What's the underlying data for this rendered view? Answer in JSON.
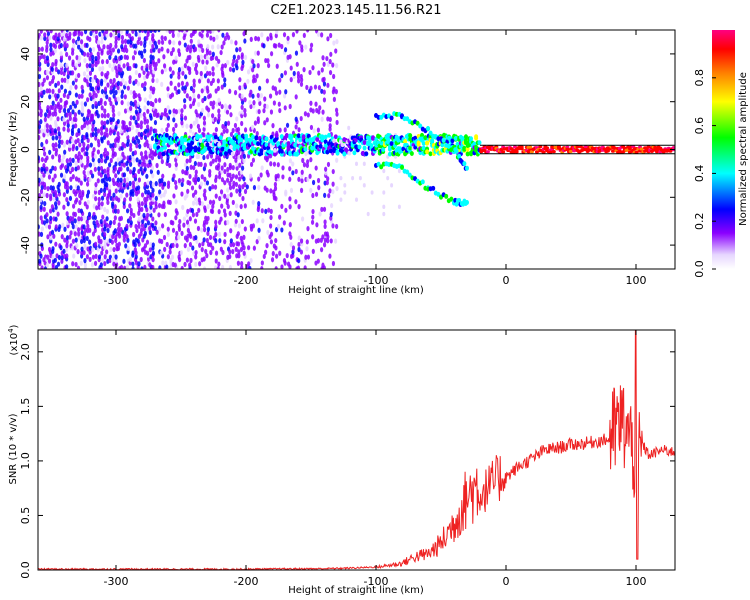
{
  "figure_title": "C2E1.2023.145.11.56.R21",
  "chart_data": [
    {
      "type": "heatmap",
      "title": "",
      "xlabel": "Height of straight line (km)",
      "ylabel": "Frequency (Hz)",
      "xlim": [
        -360,
        130
      ],
      "ylim": [
        -50,
        50
      ],
      "xticks": [
        -300,
        -200,
        -100,
        0,
        100
      ],
      "yticks": [
        -40,
        -20,
        0,
        20,
        40
      ],
      "grid": false,
      "colorbar": {
        "label": "Normalized spectral amplitude",
        "range": [
          0,
          1
        ],
        "ticks": [
          "0.0",
          "0.2",
          "0.4",
          "0.6",
          "0.8"
        ],
        "colormap": [
          "#ffffff",
          "#e6d6ff",
          "#8b00ff",
          "#0000ff",
          "#00ffff",
          "#00ff00",
          "#ffff00",
          "#ff8000",
          "#ff0000",
          "#ff0080"
        ]
      },
      "features": {
        "carrier_band": {
          "x_start": -270,
          "x_end": 130,
          "frequency_hz": 0,
          "amplitude_at_zero_km": 0.85
        },
        "noise_region": {
          "x_start": -360,
          "x_end": -130
        },
        "split_branches": [
          {
            "x": [
              -100,
              -80,
              -60,
              -40,
              -30
            ],
            "f": [
              14,
              14,
              8,
              0,
              -8
            ]
          },
          {
            "x": [
              -100,
              -80,
              -60,
              -40,
              -30
            ],
            "f": [
              -6,
              -8,
              -16,
              -22,
              -22
            ]
          }
        ]
      }
    },
    {
      "type": "line",
      "title": "",
      "xlabel": "Height of straight line (km)",
      "ylabel": "SNR (10 * v/v)",
      "y_multiplier_label": "(x10",
      "y_multiplier_exp": "4",
      "y_multiplier_close": ")",
      "xlim": [
        -360,
        130
      ],
      "ylim": [
        0,
        2.2
      ],
      "xticks": [
        -300,
        -200,
        -100,
        0,
        100
      ],
      "yticks": [
        "0.0",
        "0.5",
        "1.0",
        "1.5",
        "2.0"
      ],
      "grid": false,
      "series": [
        {
          "color": "#ee2222",
          "x": [
            -360,
            -300,
            -200,
            -140,
            -120,
            -100,
            -80,
            -70,
            -60,
            -50,
            -40,
            -30,
            -20,
            -10,
            0,
            10,
            20,
            30,
            40,
            50,
            60,
            70,
            80,
            85,
            90,
            95,
            100,
            105,
            110,
            120,
            130
          ],
          "y": [
            0.0,
            0.0,
            0.0,
            0.005,
            0.01,
            0.02,
            0.05,
            0.1,
            0.12,
            0.2,
            0.35,
            0.55,
            0.65,
            0.75,
            0.85,
            0.95,
            1.02,
            1.1,
            1.12,
            1.15,
            1.16,
            1.18,
            1.2,
            1.3,
            1.35,
            1.2,
            1.0,
            1.15,
            1.05,
            1.1,
            1.08
          ]
        }
      ]
    }
  ]
}
